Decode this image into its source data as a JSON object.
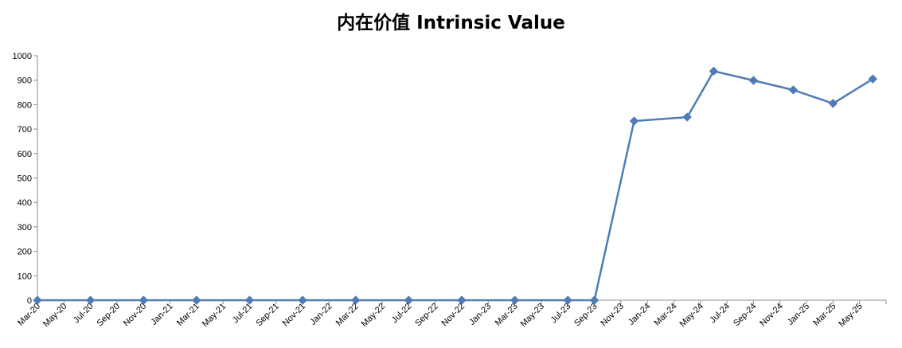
{
  "chart_data": {
    "type": "line",
    "title": "内在价值 Intrinsic Value",
    "xlabel": "",
    "ylabel": "",
    "ylim": [
      0,
      1000
    ],
    "yticks": [
      "0",
      "100",
      "200",
      "300",
      "400",
      "500",
      "600",
      "700",
      "800",
      "900",
      "1000"
    ],
    "xtick_labels": [
      "Mar-20",
      "May-20",
      "Jul-20",
      "Sep-20",
      "Nov-20",
      "Jan-21",
      "Mar-21",
      "May-21",
      "Jul-21",
      "Sep-21",
      "Nov-21",
      "Jan-22",
      "Mar-22",
      "May-22",
      "Jul-22",
      "Sep-22",
      "Nov-22",
      "Jan-23",
      "Mar-23",
      "May-23",
      "Jul-23",
      "Sep-23",
      "Nov-23",
      "Jan-24",
      "Mar-24",
      "May-24",
      "Jul-24",
      "Sep-24",
      "Nov-24",
      "Jan-25",
      "Mar-25",
      "May-25"
    ],
    "grid": false,
    "color": "#4F7CB6",
    "series": [
      {
        "x": [
          "Mar-20",
          "Jul-20",
          "Nov-20",
          "Mar-21",
          "Jul-21",
          "Nov-21",
          "Mar-22",
          "Jul-22",
          "Nov-22",
          "Mar-23",
          "Jul-23",
          "Sep-23",
          "Dec-23",
          "Apr-24",
          "Jun-24",
          "Sep-24",
          "Dec-24",
          "Mar-25",
          "Jun-25"
        ],
        "values": [
          0,
          0,
          0,
          0,
          0,
          0,
          0,
          0,
          0,
          0,
          0,
          0,
          733,
          749,
          937,
          899,
          860,
          805,
          905
        ]
      }
    ]
  }
}
